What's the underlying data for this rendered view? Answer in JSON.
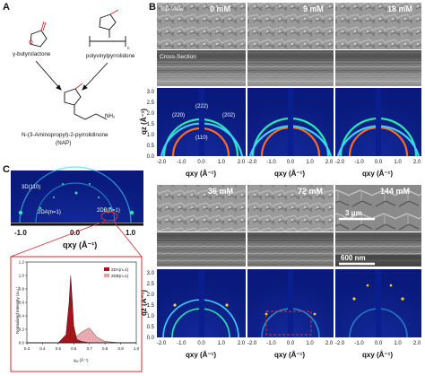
{
  "panels": {
    "a": "A",
    "b": "B",
    "c": "C"
  },
  "panel_a": {
    "molecule_1": "γ-butyrolactone",
    "molecule_2": "polyvinylpyrrolidone",
    "polymer_n": "n",
    "nh2": "NH₂",
    "product_name": "N-(3-Aminopropyl)-2-pyrrolidinone",
    "product_abbr": "(NAP)"
  },
  "panel_b": {
    "top_view_label": "Top-View",
    "cross_section_label": "Cross-Section",
    "concentrations_top": [
      "0 mM",
      "9 mM",
      "18 mM"
    ],
    "concentrations_bottom": [
      "36 mM",
      "72 mM",
      "144 mM"
    ],
    "scale_top": "3 μm",
    "scale_cross": "600 nm",
    "peaks": [
      "(220)",
      "(222)",
      "(202)",
      "(110)"
    ],
    "qz_label": "qz (Å⁻¹)",
    "qxy_label": "qxy (Å⁻¹)",
    "y_ticks": [
      "0.0",
      "0.5",
      "1.0",
      "1.5",
      "2.0",
      "2.5",
      "3.0"
    ],
    "x_ticks": [
      "-2.0",
      "-1.0",
      "0.0",
      "1.0",
      "2.0"
    ]
  },
  "panel_c": {
    "peak_3d": "3D(110)",
    "peak_2da": "2DA(n=1)",
    "peak_2db": "2DB(n=1)",
    "x_ticks": [
      "-1.0",
      "0.0",
      "1.0"
    ],
    "x_label": "qxy (Å⁻¹)",
    "inset_ylabel": "Normalized Intensity (a.u.)",
    "inset_xlabel": "qₓᵧ (Å⁻¹)",
    "inset_legend": [
      "2DA(n=1)",
      "2DB(n=1)"
    ],
    "inset_x_ticks": [
      "0.3",
      "0.4",
      "0.5",
      "0.6",
      "0.7",
      "0.8",
      "0.9",
      "1.0"
    ],
    "inset_y_ticks": [
      "0.0",
      "0.2",
      "0.4",
      "0.6",
      "0.8",
      "1.0",
      "1.2"
    ]
  },
  "colors": {
    "giwaxs_bg": "#0a1f8f",
    "sem_bg": "#8f8f8f",
    "inset_red": "#a3141c",
    "inset_pink": "#e8a0a6",
    "callout": "#cc2e2e"
  },
  "chart_data": {
    "type": "area",
    "xlabel": "qₓᵧ (Å⁻¹)",
    "ylabel": "Normalized Intensity (a.u.)",
    "xlim": [
      0.3,
      1.0
    ],
    "ylim": [
      0.0,
      1.2
    ],
    "x": [
      0.3,
      0.4,
      0.5,
      0.55,
      0.57,
      0.58,
      0.59,
      0.6,
      0.62,
      0.65,
      0.7,
      0.75,
      0.8,
      0.9,
      1.0
    ],
    "series": [
      {
        "name": "2DA(n=1)",
        "values": [
          0.0,
          0.0,
          0.0,
          0.12,
          0.6,
          1.0,
          0.65,
          0.25,
          0.05,
          0.02,
          0.0,
          0.0,
          0.0,
          0.0,
          0.0
        ]
      },
      {
        "name": "2DB(n=1)",
        "values": [
          0.0,
          0.0,
          0.0,
          0.0,
          0.0,
          0.0,
          0.02,
          0.06,
          0.1,
          0.16,
          0.22,
          0.08,
          0.02,
          0.0,
          0.0
        ]
      }
    ]
  }
}
